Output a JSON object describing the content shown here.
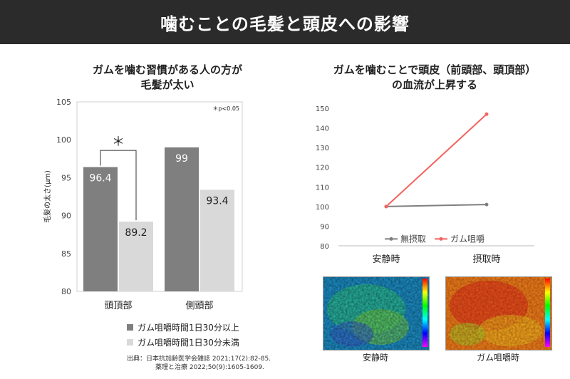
{
  "page_title": "噛むことの毛髪と頭皮への影響",
  "left_panel": {
    "title_line1": "ガムを噛む習慣がある人の方が",
    "title_line2": "毛髪が太い",
    "significance_note": "＊p<0.05",
    "significance_marker": "＊",
    "legend": [
      "ガム咀嚼時間1日30分以上",
      "ガム咀嚼時間1日30分未満"
    ],
    "source_line1": "出典：日本抗加齢医学会雑誌 2021;17(2):82-85.",
    "source_line2": "薬理と治療 2022;50(9):1605-1609."
  },
  "right_panel": {
    "title_line1": "ガムを噛むことで頭皮（前頭部、頭頂部）",
    "title_line2": "の血流が上昇する",
    "heatmap_labels": [
      "安静時",
      "ガム咀嚼時"
    ]
  },
  "chart_data": [
    {
      "type": "bar",
      "categories": [
        "頭頂部",
        "側頭部"
      ],
      "series": [
        {
          "name": "ガム咀嚼時間1日30分以上",
          "values": [
            96.4,
            99
          ],
          "color": "#7f7f7f",
          "label_color": "#ffffff"
        },
        {
          "name": "ガム咀嚼時間1日30分未満",
          "values": [
            89.2,
            93.4
          ],
          "color": "#d9d9d9",
          "label_color": "#222222"
        }
      ],
      "ylabel": "毛髪の太さ(μm)",
      "ylim": [
        80,
        105
      ],
      "yticks": [
        80,
        85,
        90,
        95,
        100,
        105
      ],
      "grid": false,
      "legend_position": "bottom"
    },
    {
      "type": "line",
      "categories": [
        "安静時",
        "摂取時"
      ],
      "series": [
        {
          "name": "無摂取",
          "values": [
            100,
            101
          ],
          "color": "#7f7f7f"
        },
        {
          "name": "ガム咀嚼",
          "values": [
            100,
            147
          ],
          "color": "#f4635e"
        }
      ],
      "ylim": [
        80,
        150
      ],
      "yticks": [
        80,
        90,
        100,
        110,
        120,
        130,
        140,
        150
      ],
      "grid": false,
      "legend_position": "bottom-center"
    }
  ]
}
